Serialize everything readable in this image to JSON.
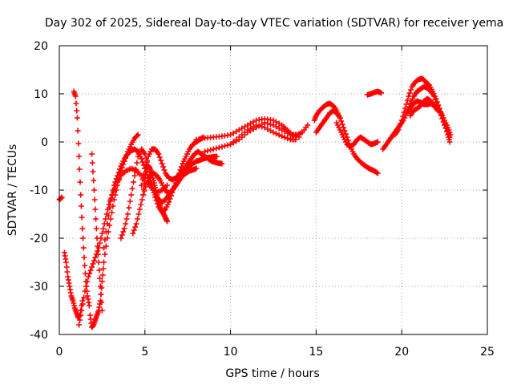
{
  "chart_data": {
    "type": "scatter",
    "title": "Day 302 of 2025, Sidereal Day-to-day VTEC variation (SDTVAR) for receiver yema",
    "xlabel": "GPS time / hours",
    "ylabel": "SDTVAR / TECUs",
    "xlim": [
      0,
      25
    ],
    "ylim": [
      -40,
      20
    ],
    "xticks": [
      0,
      5,
      10,
      15,
      20,
      25
    ],
    "yticks": [
      -40,
      -30,
      -20,
      -10,
      0,
      10,
      20
    ],
    "grid": true,
    "marker": "+",
    "color": "#ff0000",
    "series": [
      {
        "name": "s1",
        "x": [
          0.0,
          0.15
        ],
        "y": [
          -12,
          -11.5
        ]
      },
      {
        "name": "s2",
        "x": [
          0.3,
          0.4,
          0.5,
          0.6,
          0.7,
          0.8,
          0.9,
          1.0,
          1.1,
          1.2,
          1.35
        ],
        "y": [
          -23,
          -25,
          -28,
          -30,
          -32,
          -33,
          -34.5,
          -35.5,
          -36.5,
          -36,
          -33
        ]
      },
      {
        "name": "s3",
        "x": [
          0.85,
          0.95,
          1.05,
          1.15,
          1.25,
          1.35,
          1.45,
          1.55,
          1.65,
          1.75
        ],
        "y": [
          10.5,
          9.5,
          5,
          -3,
          -11,
          -18,
          -24,
          -29,
          -32,
          -34
        ]
      },
      {
        "name": "s4",
        "x": [
          1.15,
          1.3,
          1.5,
          1.7,
          1.9,
          2.1,
          2.3,
          2.5,
          2.7,
          2.9,
          3.1,
          3.3,
          3.6,
          3.9,
          4.2,
          4.5,
          4.8,
          5.1,
          5.4,
          5.7,
          6.0,
          6.3
        ],
        "y": [
          -38,
          -35,
          -31,
          -28,
          -26,
          -24,
          -22,
          -19,
          -16,
          -13,
          -11,
          -9,
          -7,
          -6,
          -5.5,
          -6,
          -7,
          -8.5,
          -9.5,
          -10.5,
          -10,
          -9
        ]
      },
      {
        "name": "s5",
        "x": [
          1.9,
          2.0,
          2.1,
          2.2,
          2.3,
          2.4,
          2.5
        ],
        "y": [
          -2.5,
          -8,
          -14,
          -20,
          -25,
          -30,
          -35
        ]
      },
      {
        "name": "s6",
        "x": [
          1.8,
          1.9,
          2.0,
          2.1,
          2.2,
          2.3,
          2.4,
          2.5,
          2.6,
          2.8,
          3.0,
          3.2,
          3.4,
          3.6,
          3.8,
          4.0,
          4.2,
          4.4,
          4.6
        ],
        "y": [
          -36,
          -38.5,
          -38,
          -37,
          -36,
          -35,
          -33,
          -29,
          -25,
          -20,
          -16,
          -12,
          -9,
          -6,
          -4,
          -2,
          -0.5,
          0.8,
          1.5
        ]
      },
      {
        "name": "s7",
        "x": [
          2.6,
          2.8,
          3.0,
          3.2,
          3.4,
          3.6,
          3.8,
          4.0,
          4.2,
          4.4,
          4.6,
          4.8,
          5.0,
          5.2,
          5.4,
          5.6,
          5.8,
          6.0,
          6.2,
          6.4,
          6.6,
          6.8,
          7.0,
          7.2,
          7.4,
          7.6,
          7.8,
          8.0
        ],
        "y": [
          -22,
          -17,
          -12,
          -9,
          -7,
          -5,
          -3.5,
          -2.5,
          -1.8,
          -1.5,
          -2,
          -3.5,
          -5.5,
          -7.5,
          -9.5,
          -11,
          -12,
          -12.5,
          -12,
          -11,
          -10,
          -9,
          -8,
          -7,
          -6.5,
          -6,
          -5.8,
          -5.5
        ]
      },
      {
        "name": "s8",
        "x": [
          3.6,
          3.8,
          4.0,
          4.2,
          4.4,
          4.6,
          4.8,
          5.0,
          5.2,
          5.4,
          5.6,
          5.8,
          6.0,
          6.2,
          6.4,
          6.6,
          6.8,
          7.0,
          7.2,
          7.4,
          7.6,
          7.8,
          8.0,
          8.2,
          8.4
        ],
        "y": [
          -20,
          -18,
          -15,
          -11,
          -7,
          -3,
          -1.5,
          -2.5,
          -5,
          -8.5,
          -11.5,
          -13.5,
          -14.5,
          -14,
          -12.5,
          -10.5,
          -8.5,
          -6.5,
          -4.5,
          -3,
          -1.5,
          -0.5,
          0,
          0.5,
          1
        ]
      },
      {
        "name": "s9",
        "x": [
          4.3,
          4.5,
          4.7,
          4.9,
          5.1,
          5.3,
          5.5,
          5.7,
          5.9,
          6.1,
          6.3,
          6.5,
          6.7,
          6.9,
          7.1,
          7.3,
          7.5,
          7.7,
          7.9,
          8.1,
          8.3,
          8.5,
          8.7,
          8.9,
          9.1,
          9.3,
          9.5
        ],
        "y": [
          -19,
          -17,
          -14,
          -11,
          -8.5,
          -7,
          -6.5,
          -7,
          -8,
          -9.5,
          -10.5,
          -10.5,
          -9.5,
          -8.5,
          -7,
          -5.5,
          -4.5,
          -3.5,
          -2.5,
          -2,
          -2.5,
          -3,
          -3.5,
          -4,
          -4.2,
          -4.4,
          -4.5
        ]
      },
      {
        "name": "s10",
        "x": [
          4.8,
          5.0,
          5.2,
          5.4,
          5.6,
          5.8,
          6.0,
          6.2,
          6.4,
          6.6,
          6.8,
          7.0,
          7.2,
          7.4,
          7.6,
          7.8,
          8.0,
          8.2,
          8.4,
          8.6,
          8.8,
          9.0,
          9.2
        ],
        "y": [
          -9,
          -5.5,
          -3,
          -1.5,
          -1.5,
          -2.5,
          -4.5,
          -6.5,
          -7.5,
          -7.8,
          -7.5,
          -6.8,
          -6,
          -5.5,
          -5,
          -4.5,
          -4,
          -3.8,
          -3.5,
          -3.3,
          -3.2,
          -3.1,
          -3
        ]
      },
      {
        "name": "s11",
        "x": [
          4.9,
          5.0,
          5.1,
          5.2,
          5.3,
          5.4,
          5.5,
          5.6,
          5.7,
          5.8,
          5.9,
          6.0,
          6.1,
          6.2,
          6.3
        ],
        "y": [
          -11,
          -7.5,
          -5.5,
          -5,
          -5.5,
          -6.5,
          -8,
          -9.5,
          -11,
          -12.5,
          -13.5,
          -14.5,
          -15,
          -15.8,
          -16.5
        ]
      },
      {
        "name": "s12",
        "x": [
          8.0,
          8.5,
          9.0,
          9.5,
          10.0,
          10.5,
          11.0,
          11.5,
          12.0,
          12.5,
          13.0,
          13.3,
          13.6,
          13.9,
          14.2,
          14.5
        ],
        "y": [
          0.5,
          0.8,
          1,
          1.2,
          1.5,
          2.5,
          3.5,
          4.5,
          4.8,
          4.5,
          3.5,
          2.5,
          1.5,
          1.5,
          2,
          3.5
        ]
      },
      {
        "name": "s13",
        "x": [
          8.5,
          9.0,
          9.5,
          10.0,
          10.5,
          11.0,
          11.5,
          12.0,
          12.5,
          13.0,
          13.5,
          14.0
        ],
        "y": [
          -2,
          -1.5,
          -1,
          -0.5,
          0.5,
          2,
          3,
          4,
          3.5,
          2.5,
          1.5,
          1
        ]
      },
      {
        "name": "s14",
        "x": [
          10.0,
          10.5,
          11.0,
          11.5,
          12.0,
          12.5,
          13.0,
          13.5,
          13.8
        ],
        "y": [
          -0.5,
          1,
          2.5,
          3.5,
          3,
          2,
          1.2,
          0.5,
          0.5
        ]
      },
      {
        "name": "s15",
        "x": [
          14.9,
          15.0,
          15.2,
          15.4,
          15.6,
          15.8,
          16.0,
          16.2,
          16.4
        ],
        "y": [
          4.5,
          5.5,
          6.5,
          7.2,
          7.8,
          8,
          7.5,
          6.5,
          5
        ]
      },
      {
        "name": "s16",
        "x": [
          15.0,
          15.2,
          15.4,
          15.6,
          15.8,
          16.0,
          16.2,
          16.4,
          16.6,
          16.8,
          17.0,
          17.2,
          17.4,
          17.6,
          17.8,
          18.0,
          18.2,
          18.4,
          18.6
        ],
        "y": [
          2,
          3,
          4,
          5,
          6,
          6.5,
          6,
          5,
          3,
          1,
          -1,
          -2.5,
          -3.5,
          -4.2,
          -4.8,
          -5.3,
          -5.7,
          -6,
          -6.5
        ]
      },
      {
        "name": "s17",
        "x": [
          16.2,
          16.4,
          16.6,
          16.8,
          17.0,
          17.2,
          17.4,
          17.6,
          17.8,
          18.0,
          18.2,
          18.4,
          18.6
        ],
        "y": [
          4,
          2.5,
          1,
          -0.5,
          -1,
          -0.5,
          0.5,
          1,
          0.5,
          0,
          -0.5,
          -0.3,
          0
        ]
      },
      {
        "name": "s18",
        "x": [
          18.0,
          18.2,
          18.4,
          18.6,
          18.8
        ],
        "y": [
          9.8,
          10,
          10.3,
          10.5,
          10.2
        ]
      },
      {
        "name": "s19",
        "x": [
          18.9,
          19.1,
          19.3,
          19.5,
          19.7,
          19.9,
          20.1,
          20.3,
          20.5,
          20.7,
          20.9,
          21.1,
          21.3,
          21.5,
          21.7,
          21.9,
          22.1,
          22.3,
          22.5,
          22.7,
          22.85
        ],
        "y": [
          -1.5,
          -0.5,
          0.5,
          1.5,
          2.5,
          3.5,
          4.5,
          6,
          7,
          8,
          8.5,
          8.2,
          7.8,
          7.8,
          8,
          7.5,
          7,
          6,
          4.5,
          3,
          1.5
        ]
      },
      {
        "name": "s20",
        "x": [
          19.6,
          19.8,
          20.0,
          20.2,
          20.4,
          20.6,
          20.8,
          21.0,
          21.2,
          21.4,
          21.6,
          21.8,
          22.0,
          22.2,
          22.4,
          22.6,
          22.8
        ],
        "y": [
          1.5,
          2.5,
          4.5,
          7,
          9.5,
          11.5,
          12.5,
          13,
          13.2,
          12.5,
          11.8,
          10.5,
          9,
          7,
          5,
          3,
          1
        ]
      },
      {
        "name": "s21",
        "x": [
          20.3,
          20.5,
          20.7,
          20.9,
          21.1,
          21.3,
          21.5,
          21.7,
          21.9,
          22.1,
          22.3,
          22.5,
          22.7,
          22.8
        ],
        "y": [
          6,
          8,
          9.5,
          10.5,
          11,
          11.5,
          11.2,
          10.5,
          9.5,
          7.5,
          5.5,
          3.5,
          1.5,
          0
        ]
      },
      {
        "name": "s22",
        "x": [
          20.5,
          20.7,
          20.9,
          21.1,
          21.3,
          21.5,
          21.7,
          21.9,
          22.1
        ],
        "y": [
          5.5,
          6.5,
          7,
          7.5,
          8.5,
          9,
          8.5,
          7.5,
          6.5
        ]
      }
    ]
  }
}
